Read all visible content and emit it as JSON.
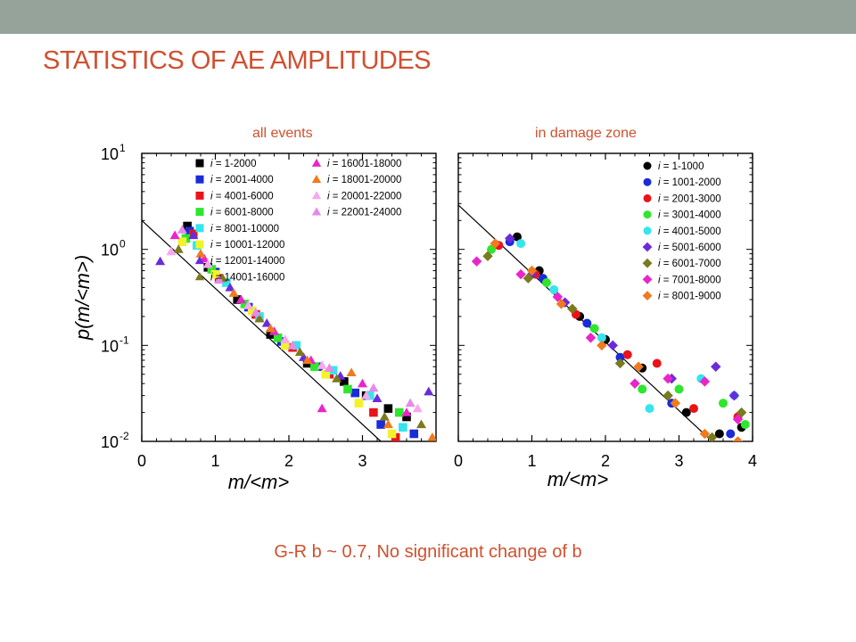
{
  "slide": {
    "title": "STATISTICS OF AE AMPLITUDES",
    "footer": "G-R b ~ 0.7, No significant change of b",
    "topbar_color": "#95a39b",
    "accent_color": "#d0502f"
  },
  "chart_data": [
    {
      "type": "scatter",
      "title": "all events",
      "xlabel": "m/<m>",
      "ylabel": "p(m/<m>)",
      "yscale": "log",
      "xlim": [
        0,
        4
      ],
      "ylim": [
        0.01,
        10
      ],
      "xticks": [
        "0",
        "1",
        "2",
        "3"
      ],
      "yticks": [
        {
          "value": 10,
          "base": "10",
          "exp": "1"
        },
        {
          "value": 1,
          "base": "10",
          "exp": "0"
        },
        {
          "value": 0.1,
          "base": "10",
          "exp": "-1"
        },
        {
          "value": 0.01,
          "base": "10",
          "exp": "-2"
        }
      ],
      "legend_position": "top-right",
      "legend_columns": 2,
      "fit_line": {
        "points": [
          [
            0,
            2.0
          ],
          [
            3.25,
            0.01
          ]
        ],
        "color": "#000000"
      },
      "series": [
        {
          "name": "= 1-2000",
          "marker": "square",
          "color": "#000000",
          "points": [
            [
              0.62,
              1.75
            ],
            [
              0.9,
              0.65
            ],
            [
              1.3,
              0.3
            ],
            [
              1.75,
              0.13
            ],
            [
              2.25,
              0.065
            ],
            [
              2.75,
              0.042
            ],
            [
              3.05,
              0.03
            ],
            [
              3.35,
              0.022
            ],
            [
              3.6,
              0.018
            ]
          ]
        },
        {
          "name": "= 2001-4000",
          "marker": "square",
          "color": "#1a2bd8",
          "points": [
            [
              0.65,
              1.55
            ],
            [
              1.0,
              0.58
            ],
            [
              1.45,
              0.25
            ],
            [
              1.9,
              0.11
            ],
            [
              2.4,
              0.06
            ],
            [
              2.9,
              0.032
            ],
            [
              3.25,
              0.015
            ],
            [
              3.7,
              0.012
            ]
          ]
        },
        {
          "name": "= 4001-6000",
          "marker": "square",
          "color": "#e8141a",
          "points": [
            [
              0.7,
              1.45
            ],
            [
              1.05,
              0.5
            ],
            [
              1.55,
              0.21
            ],
            [
              2.05,
              0.095
            ],
            [
              2.55,
              0.05
            ],
            [
              3.15,
              0.02
            ],
            [
              3.45,
              0.011
            ]
          ]
        },
        {
          "name": "= 6001-8000",
          "marker": "square",
          "color": "#2ee62e",
          "points": [
            [
              0.6,
              1.3
            ],
            [
              0.95,
              0.62
            ],
            [
              1.4,
              0.27
            ],
            [
              1.85,
              0.12
            ],
            [
              2.35,
              0.06
            ],
            [
              2.8,
              0.035
            ],
            [
              3.5,
              0.02
            ]
          ]
        },
        {
          "name": "= 8001-10000",
          "marker": "square",
          "color": "#33e5ee",
          "points": [
            [
              0.75,
              1.1
            ],
            [
              1.15,
              0.45
            ],
            [
              1.6,
              0.2
            ],
            [
              2.1,
              0.1
            ],
            [
              2.6,
              0.055
            ],
            [
              3.1,
              0.03
            ],
            [
              3.55,
              0.014
            ]
          ]
        },
        {
          "name": "= 10001-12000",
          "marker": "square",
          "color": "#f2f22a",
          "points": [
            [
              0.55,
              1.2
            ],
            [
              1.0,
              0.55
            ],
            [
              1.5,
              0.23
            ],
            [
              1.95,
              0.1
            ],
            [
              2.5,
              0.05
            ],
            [
              2.95,
              0.025
            ],
            [
              3.4,
              0.012
            ]
          ]
        },
        {
          "name": "= 12001-14000",
          "marker": "triangle",
          "color": "#6b2bdc",
          "points": [
            [
              0.25,
              0.75
            ],
            [
              0.7,
              1.4
            ],
            [
              1.2,
              0.4
            ],
            [
              1.7,
              0.17
            ],
            [
              2.2,
              0.075
            ],
            [
              2.7,
              0.048
            ],
            [
              3.2,
              0.028
            ],
            [
              3.9,
              0.033
            ]
          ]
        },
        {
          "name": "= 14001-16000",
          "marker": "triangle",
          "color": "#7a7a1e",
          "points": [
            [
              0.5,
              1.0
            ],
            [
              1.1,
              0.5
            ],
            [
              1.6,
              0.19
            ],
            [
              2.15,
              0.085
            ],
            [
              2.65,
              0.045
            ],
            [
              3.3,
              0.018
            ],
            [
              3.8,
              0.015
            ]
          ]
        },
        {
          "name": "= 16001-18000",
          "marker": "triangle",
          "color": "#e925c9",
          "points": [
            [
              0.45,
              1.4
            ],
            [
              0.85,
              0.8
            ],
            [
              1.35,
              0.3
            ],
            [
              1.8,
              0.14
            ],
            [
              2.3,
              0.07
            ],
            [
              2.45,
              0.022
            ],
            [
              3.0,
              0.04
            ],
            [
              3.6,
              0.02
            ]
          ]
        },
        {
          "name": "= 18001-20000",
          "marker": "triangle",
          "color": "#f07a1e",
          "points": [
            [
              0.8,
              0.9
            ],
            [
              1.25,
              0.35
            ],
            [
              1.75,
              0.15
            ],
            [
              2.25,
              0.07
            ],
            [
              2.85,
              0.052
            ],
            [
              3.35,
              0.015
            ],
            [
              3.95,
              0.011
            ]
          ]
        },
        {
          "name": "= 20001-22000",
          "marker": "triangle",
          "color": "#f7a7f0",
          "points": [
            [
              0.4,
              0.95
            ],
            [
              0.9,
              0.7
            ],
            [
              1.45,
              0.26
            ],
            [
              1.95,
              0.115
            ],
            [
              2.45,
              0.062
            ],
            [
              3.05,
              0.03
            ],
            [
              3.75,
              0.022
            ]
          ]
        },
        {
          "name": "= 22001-24000",
          "marker": "triangle",
          "color": "#e68ae8",
          "points": [
            [
              0.55,
              1.6
            ],
            [
              1.05,
              0.48
            ],
            [
              1.55,
              0.22
            ],
            [
              2.05,
              0.1
            ],
            [
              2.55,
              0.058
            ],
            [
              3.15,
              0.036
            ],
            [
              3.65,
              0.025
            ]
          ]
        }
      ]
    },
    {
      "type": "scatter",
      "title": "in damage zone",
      "xlabel": "m/<m>",
      "ylabel": "",
      "yscale": "log",
      "xlim": [
        0,
        4
      ],
      "ylim": [
        0.01,
        10
      ],
      "xticks": [
        "0",
        "1",
        "2",
        "3",
        "4"
      ],
      "legend_position": "top-right",
      "legend_columns": 1,
      "fit_line": {
        "points": [
          [
            0,
            2.9
          ],
          [
            3.45,
            0.01
          ]
        ],
        "color": "#000000"
      },
      "series": [
        {
          "name": "= 1-1000",
          "marker": "circle",
          "color": "#000000",
          "points": [
            [
              0.8,
              1.35
            ],
            [
              1.1,
              0.6
            ],
            [
              1.65,
              0.2
            ],
            [
              2.0,
              0.115
            ],
            [
              2.5,
              0.058
            ],
            [
              3.1,
              0.02
            ],
            [
              3.55,
              0.012
            ],
            [
              3.85,
              0.014
            ]
          ]
        },
        {
          "name": "= 1001-2000",
          "marker": "circle",
          "color": "#1a2bd8",
          "points": [
            [
              0.7,
              1.2
            ],
            [
              1.15,
              0.5
            ],
            [
              1.75,
              0.17
            ],
            [
              2.2,
              0.075
            ],
            [
              2.9,
              0.025
            ],
            [
              3.7,
              0.012
            ]
          ]
        },
        {
          "name": "= 2001-3000",
          "marker": "circle",
          "color": "#e8141a",
          "points": [
            [
              0.55,
              1.1
            ],
            [
              1.05,
              0.55
            ],
            [
              1.6,
              0.21
            ],
            [
              2.3,
              0.08
            ],
            [
              2.7,
              0.065
            ],
            [
              3.2,
              0.022
            ],
            [
              3.8,
              0.018
            ]
          ]
        },
        {
          "name": "= 3001-4000",
          "marker": "circle",
          "color": "#2ee62e",
          "points": [
            [
              0.45,
              1.0
            ],
            [
              1.2,
              0.45
            ],
            [
              1.85,
              0.15
            ],
            [
              2.5,
              0.035
            ],
            [
              3.0,
              0.035
            ],
            [
              3.6,
              0.025
            ],
            [
              3.9,
              0.015
            ]
          ]
        },
        {
          "name": "= 4001-5000",
          "marker": "circle",
          "color": "#33e5ee",
          "points": [
            [
              0.85,
              1.15
            ],
            [
              1.3,
              0.38
            ],
            [
              1.95,
              0.12
            ],
            [
              2.6,
              0.022
            ],
            [
              3.3,
              0.045
            ],
            [
              3.75,
              0.03
            ]
          ]
        },
        {
          "name": "= 5001-6000",
          "marker": "diamond",
          "color": "#6b2bdc",
          "points": [
            [
              0.7,
              1.3
            ],
            [
              1.0,
              0.55
            ],
            [
              1.45,
              0.28
            ],
            [
              2.1,
              0.1
            ],
            [
              2.9,
              0.045
            ],
            [
              3.5,
              0.06
            ],
            [
              3.75,
              0.03
            ]
          ]
        },
        {
          "name": "= 6001-7000",
          "marker": "diamond",
          "color": "#7a7a1e",
          "points": [
            [
              0.4,
              0.85
            ],
            [
              0.95,
              0.5
            ],
            [
              1.55,
              0.24
            ],
            [
              2.2,
              0.065
            ],
            [
              2.85,
              0.03
            ],
            [
              3.45,
              0.011
            ],
            [
              3.85,
              0.02
            ]
          ]
        },
        {
          "name": "= 7001-8000",
          "marker": "diamond",
          "color": "#e925c9",
          "points": [
            [
              0.25,
              0.75
            ],
            [
              0.85,
              0.55
            ],
            [
              1.35,
              0.32
            ],
            [
              1.8,
              0.12
            ],
            [
              2.4,
              0.04
            ],
            [
              2.85,
              0.045
            ],
            [
              3.35,
              0.042
            ],
            [
              3.8,
              0.017
            ]
          ]
        },
        {
          "name": "= 8001-9000",
          "marker": "diamond",
          "color": "#f07a1e",
          "points": [
            [
              0.5,
              1.15
            ],
            [
              1.0,
              0.6
            ],
            [
              1.4,
              0.27
            ],
            [
              1.95,
              0.1
            ],
            [
              2.45,
              0.06
            ],
            [
              2.95,
              0.025
            ],
            [
              3.35,
              0.012
            ],
            [
              3.8,
              0.01
            ]
          ]
        }
      ]
    }
  ]
}
